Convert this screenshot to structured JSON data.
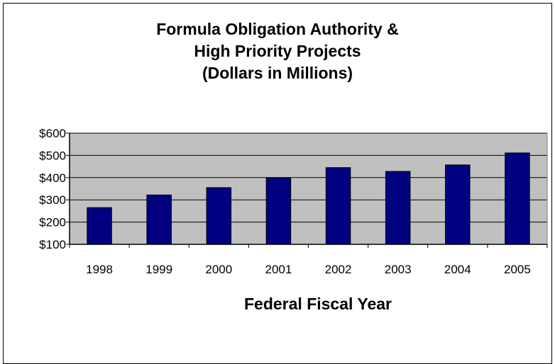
{
  "chart_data": {
    "type": "bar",
    "title": [
      "Formula Obligation Authority &",
      "High Priority Projects",
      "(Dollars in Millions)"
    ],
    "xlabel": "Federal Fiscal Year",
    "ylabel": "",
    "categories": [
      "1998",
      "1999",
      "2000",
      "2001",
      "2002",
      "2003",
      "2004",
      "2005"
    ],
    "values": [
      265,
      322,
      355,
      400,
      445,
      428,
      457,
      511
    ],
    "ylim": [
      100,
      600
    ],
    "yticks": [
      100,
      200,
      300,
      400,
      500,
      600
    ],
    "ytick_labels": [
      "$100",
      "$200",
      "$300",
      "$400",
      "$500",
      "$600"
    ],
    "grid": true,
    "legend": "none",
    "colors": {
      "bar": "#000080",
      "plot_background": "#c0c0c0",
      "gridline": "#000000"
    }
  }
}
